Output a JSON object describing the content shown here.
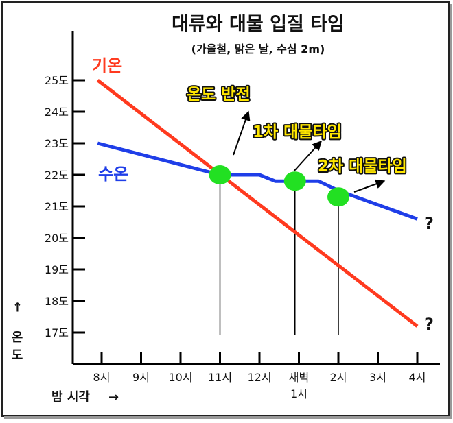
{
  "chart_data": {
    "type": "line",
    "title": "대류와 대물 입질 타임",
    "subtitle": "(가을철, 맑은 날, 수심 2m)",
    "xlabel": "밤 시각",
    "ylabel": "온도",
    "categories": [
      "8시",
      "9시",
      "10시",
      "11시",
      "12시",
      "새벽\n1시",
      "2시",
      "3시",
      "4시"
    ],
    "x": [
      8,
      9,
      10,
      11,
      12,
      13,
      14,
      15,
      16
    ],
    "y_ticks": [
      "25도",
      "24도",
      "23도",
      "22도",
      "21도",
      "20도",
      "19도",
      "18도",
      "17도"
    ],
    "ylim": [
      16.5,
      25.5
    ],
    "grid": false,
    "series": [
      {
        "name": "기온",
        "color": "#ff3a1f",
        "points": [
          [
            7.9,
            25.0
          ],
          [
            16.0,
            17.2
          ]
        ]
      },
      {
        "name": "수온",
        "color": "#1f3ee8",
        "points": [
          [
            7.9,
            23.0
          ],
          [
            11.0,
            22.0
          ],
          [
            12.0,
            22.0
          ],
          [
            12.4,
            21.8
          ],
          [
            13.5,
            21.8
          ],
          [
            14.0,
            21.5
          ],
          [
            16.0,
            20.6
          ]
        ]
      }
    ],
    "annotations": [
      {
        "label": "온도 반전",
        "x": 11.0,
        "y": 22.0
      },
      {
        "label": "1차 대물타임",
        "x": 12.9,
        "y": 21.8
      },
      {
        "label": "2차 대물타임",
        "x": 14.0,
        "y": 21.3
      }
    ],
    "end_marks": [
      "?",
      "?"
    ],
    "marker_color": "#22e022",
    "axis_arrow": "→"
  }
}
